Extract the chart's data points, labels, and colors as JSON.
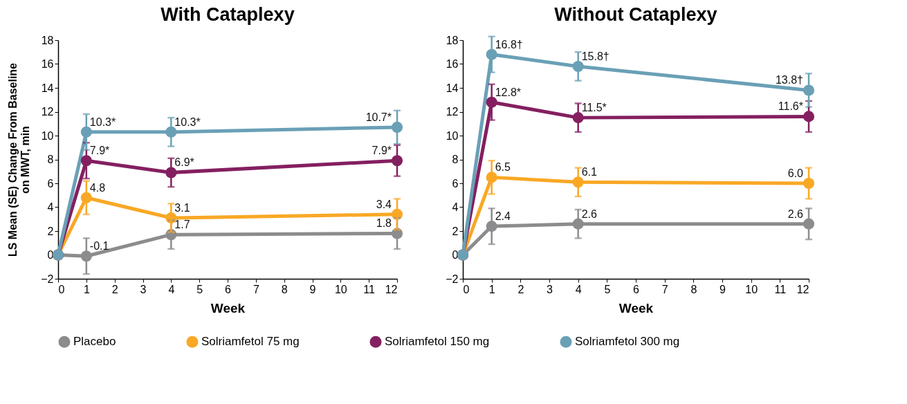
{
  "chart_data": [
    {
      "type": "line",
      "title": "With Cataplexy",
      "xlabel": "Week",
      "ylabel": "LS Mean (SE) Change From Baseline\non MWT, min",
      "x": [
        0,
        1,
        4,
        12
      ],
      "xlim": [
        0,
        12
      ],
      "xticks": [
        0,
        1,
        2,
        3,
        4,
        5,
        6,
        7,
        8,
        9,
        10,
        11,
        12
      ],
      "ylim": [
        -2,
        18
      ],
      "yticks": [
        -2,
        0,
        2,
        4,
        6,
        8,
        10,
        12,
        14,
        16,
        18
      ],
      "grid": false,
      "legend": "bottom",
      "marker": "circle",
      "line_style": "solid",
      "series": [
        {
          "name": "Placebo",
          "color": "#8c8c8e",
          "values": [
            0,
            -0.1,
            1.7,
            1.8
          ],
          "errors": [
            null,
            1.5,
            1.2,
            1.3
          ],
          "value_labels": [
            null,
            "-0.1",
            "1.7",
            "1.8"
          ]
        },
        {
          "name": "Solriamfetol 75 mg",
          "color": "#f9a825",
          "values": [
            0,
            4.8,
            3.1,
            3.4
          ],
          "errors": [
            null,
            1.4,
            1.2,
            1.3
          ],
          "value_labels": [
            null,
            "4.8",
            "3.1",
            "3.4"
          ]
        },
        {
          "name": "Solriamfetol 150 mg",
          "color": "#841f60",
          "values": [
            0,
            7.9,
            6.9,
            7.9
          ],
          "errors": [
            null,
            1.5,
            1.2,
            1.3
          ],
          "value_labels": [
            null,
            "7.9*",
            "6.9*",
            "7.9*"
          ]
        },
        {
          "name": "Solriamfetol 300 mg",
          "color": "#6aa0b6",
          "values": [
            0,
            10.3,
            10.3,
            10.7
          ],
          "errors": [
            null,
            1.5,
            1.2,
            1.4
          ],
          "value_labels": [
            null,
            "10.3*",
            "10.3*",
            "10.7*"
          ]
        }
      ]
    },
    {
      "type": "line",
      "title": "Without Cataplexy",
      "xlabel": "Week",
      "x": [
        0,
        1,
        4,
        12
      ],
      "xlim": [
        0,
        12
      ],
      "xticks": [
        0,
        1,
        2,
        3,
        4,
        5,
        6,
        7,
        8,
        9,
        10,
        11,
        12
      ],
      "ylim": [
        -2,
        18
      ],
      "yticks": [
        -2,
        0,
        2,
        4,
        6,
        8,
        10,
        12,
        14,
        16,
        18
      ],
      "grid": false,
      "legend": "bottom",
      "marker": "circle",
      "line_style": "solid",
      "series": [
        {
          "name": "Placebo",
          "color": "#8c8c8e",
          "values": [
            0,
            2.4,
            2.6,
            2.6
          ],
          "errors": [
            null,
            1.5,
            1.2,
            1.3
          ],
          "value_labels": [
            null,
            "2.4",
            "2.6",
            "2.6"
          ]
        },
        {
          "name": "Solriamfetol 75 mg",
          "color": "#f9a825",
          "values": [
            0,
            6.5,
            6.1,
            6.0
          ],
          "errors": [
            null,
            1.4,
            1.2,
            1.3
          ],
          "value_labels": [
            null,
            "6.5",
            "6.1",
            "6.0"
          ]
        },
        {
          "name": "Solriamfetol 150 mg",
          "color": "#841f60",
          "values": [
            0,
            12.8,
            11.5,
            11.6
          ],
          "errors": [
            null,
            1.5,
            1.2,
            1.3
          ],
          "value_labels": [
            null,
            "12.8*",
            "11.5*",
            "11.6*"
          ]
        },
        {
          "name": "Solriamfetol 300 mg",
          "color": "#6aa0b6",
          "values": [
            0,
            16.8,
            15.8,
            13.8
          ],
          "errors": [
            null,
            1.5,
            1.2,
            1.4
          ],
          "value_labels": [
            null,
            "16.8†",
            "15.8†",
            "13.8†"
          ]
        }
      ]
    }
  ]
}
